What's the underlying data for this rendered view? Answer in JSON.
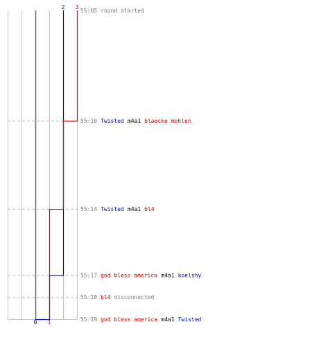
{
  "colors": {
    "team_blue": "#0000bb",
    "team_red": "#cc0000",
    "neutral_text": "#777777",
    "default_text": "#000000",
    "grid_minor": "#c0c0c0",
    "grid_zero": "#666666",
    "guide": "#bbbbbb"
  },
  "chart_data": {
    "type": "line",
    "title": "",
    "xlabel": "",
    "ylabel": "",
    "xlim": [
      -2,
      3
    ],
    "x_zero": 0,
    "start_time": "55:05",
    "end_time": "55:19",
    "series": [
      {
        "color": "blue",
        "start_label": "2",
        "end_label": "0",
        "points": [
          [
            "55:05",
            2
          ],
          [
            "55:17",
            1
          ],
          [
            "55:19",
            0
          ]
        ]
      },
      {
        "color": "red",
        "start_label": "3",
        "end_label": "1",
        "points": [
          [
            "55:05",
            3
          ],
          [
            "55:10",
            2
          ],
          [
            "55:14",
            1
          ]
        ]
      }
    ],
    "events": [
      {
        "time": "55:05",
        "parts": [
          {
            "text": "round started",
            "color": "neutral"
          }
        ]
      },
      {
        "time": "55:10",
        "parts": [
          {
            "text": "Twisted",
            "color": "blue"
          },
          {
            "text": "m4a1",
            "color": "default"
          },
          {
            "text": "blaecke mohlen",
            "color": "red"
          }
        ]
      },
      {
        "time": "55:14",
        "parts": [
          {
            "text": "Twisted",
            "color": "blue"
          },
          {
            "text": "m4a1",
            "color": "default"
          },
          {
            "text": "bl4",
            "color": "red"
          }
        ]
      },
      {
        "time": "55:17",
        "parts": [
          {
            "text": "god bless america",
            "color": "red"
          },
          {
            "text": "m4a1",
            "color": "default"
          },
          {
            "text": "koelshy",
            "color": "blue"
          }
        ]
      },
      {
        "time": "55:18",
        "parts": [
          {
            "text": "bl4",
            "color": "red"
          },
          {
            "text": "disconnected",
            "color": "neutral"
          }
        ]
      },
      {
        "time": "55:19",
        "parts": [
          {
            "text": "god bless america",
            "color": "red"
          },
          {
            "text": "m4a1",
            "color": "default"
          },
          {
            "text": "Twisted",
            "color": "blue"
          }
        ]
      }
    ]
  }
}
